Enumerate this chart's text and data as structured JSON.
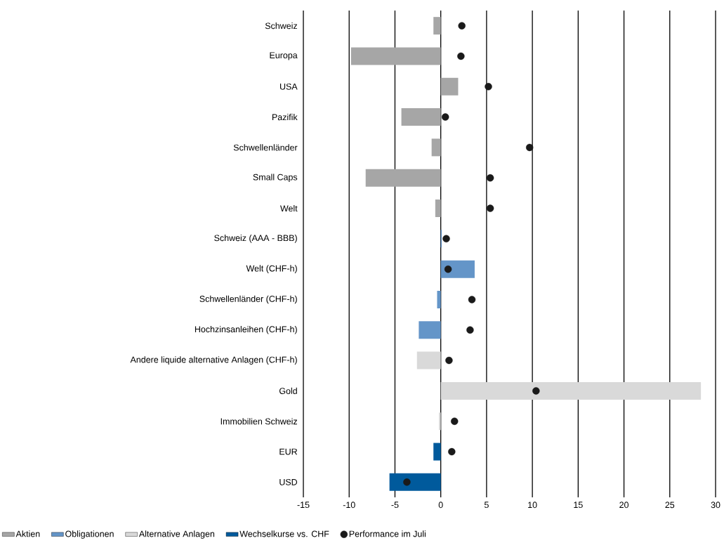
{
  "chart_data": {
    "type": "bar",
    "orientation": "horizontal",
    "categories": [
      "Schweiz",
      "Europa",
      "USA",
      "Pazifik",
      "Schwellenländer",
      "Small Caps",
      "Welt",
      "Schweiz (AAA - BBB)",
      "Welt (CHF-h)",
      "Schwellenländer (CHF-h)",
      "Hochzinsanleihen (CHF-h)",
      "Andere liquide alternative Anlagen (CHF-h)",
      "Gold",
      "Immobilien Schweiz",
      "EUR",
      "USD"
    ],
    "series": [
      {
        "name": "Aktien",
        "color": "#a6a6a6",
        "values": [
          -0.8,
          -9.8,
          1.9,
          -4.3,
          -1.0,
          -8.2,
          -0.6,
          null,
          null,
          null,
          null,
          null,
          null,
          null,
          null,
          null
        ]
      },
      {
        "name": "Obligationen",
        "color": "#6495c8",
        "values": [
          null,
          null,
          null,
          null,
          null,
          null,
          null,
          0.1,
          3.7,
          -0.4,
          -2.4,
          null,
          null,
          null,
          null,
          null
        ]
      },
      {
        "name": "Alternative Anlagen",
        "color": "#d9d9d9",
        "values": [
          null,
          null,
          null,
          null,
          null,
          null,
          null,
          null,
          null,
          null,
          null,
          -2.6,
          28.4,
          -0.2,
          null,
          null
        ]
      },
      {
        "name": "Wechselkurse vs. CHF",
        "color": "#005a9c",
        "values": [
          null,
          null,
          null,
          null,
          null,
          null,
          null,
          null,
          null,
          null,
          null,
          null,
          null,
          null,
          -0.8,
          -5.6
        ]
      },
      {
        "name": "Performance im Juli",
        "type": "scatter",
        "color": "#1a1a1a",
        "values": [
          2.3,
          2.2,
          5.2,
          0.5,
          9.7,
          5.4,
          5.4,
          0.6,
          0.8,
          3.4,
          3.2,
          0.9,
          10.4,
          1.5,
          1.2,
          -3.7
        ]
      }
    ],
    "xlim": [
      -15,
      30
    ],
    "xticks": [
      -15,
      -10,
      -5,
      0,
      5,
      10,
      15,
      20,
      25,
      30
    ],
    "grid": "x",
    "legend": "bottom",
    "marker": "circle"
  }
}
